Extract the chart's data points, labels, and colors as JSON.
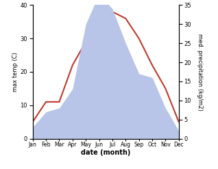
{
  "months": [
    "Jan",
    "Feb",
    "Mar",
    "Apr",
    "May",
    "Jun",
    "Jul",
    "Aug",
    "Sep",
    "Oct",
    "Nov",
    "Dec"
  ],
  "temperature": [
    5,
    11,
    11,
    22,
    29,
    38,
    38,
    36,
    30,
    22,
    15,
    5
  ],
  "precipitation": [
    3,
    7,
    8,
    13,
    30,
    38,
    34,
    25,
    17,
    16,
    8,
    2
  ],
  "temp_color": "#c0392b",
  "precip_fill_color": "#b8c4e8",
  "ylabel_left": "max temp (C)",
  "ylabel_right": "med. precipitation (kg/m2)",
  "xlabel": "date (month)",
  "ylim_left": [
    0,
    40
  ],
  "ylim_right": [
    0,
    35
  ],
  "yticks_left": [
    0,
    10,
    20,
    30,
    40
  ],
  "yticks_right": [
    0,
    5,
    10,
    15,
    20,
    25,
    30,
    35
  ],
  "background_color": "#ffffff",
  "figsize": [
    3.18,
    2.47
  ],
  "dpi": 100
}
